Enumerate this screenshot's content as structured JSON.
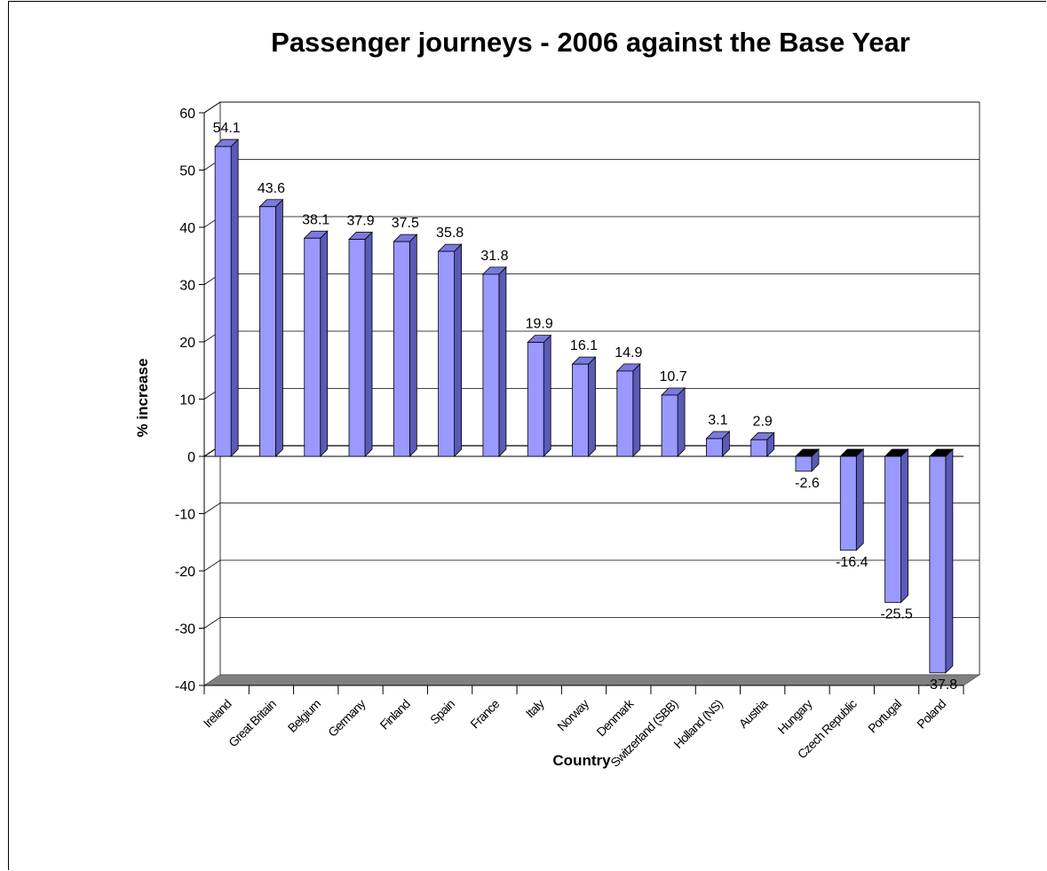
{
  "colors": {
    "bar_front": "#9999ff",
    "bar_side": "#5a5ab8",
    "bar_top": "#7a7ae0",
    "floor": "#808080",
    "grid": "#000000"
  },
  "chart_data": {
    "type": "bar",
    "title": "Passenger journeys - 2006 against the Base Year",
    "xlabel": "Country",
    "ylabel": "% increase",
    "ylim": [
      -40,
      60
    ],
    "yticks": [
      60,
      50,
      40,
      30,
      20,
      10,
      0,
      -10,
      -20,
      -30,
      -40
    ],
    "grid": true,
    "categories": [
      "Ireland",
      "Great Britain",
      "Belgium",
      "Germany",
      "Finland",
      "Spain",
      "France",
      "Italy",
      "Norway",
      "Denmark",
      "Switzerland (SBB)",
      "Holland (NS)",
      "Austria",
      "Hungary",
      "Czech Republic",
      "Portugal",
      "Poland"
    ],
    "values": [
      54.1,
      43.6,
      38.1,
      37.9,
      37.5,
      35.8,
      31.8,
      19.9,
      16.1,
      14.9,
      10.7,
      3.1,
      2.9,
      -2.6,
      -16.4,
      -25.5,
      -37.8
    ],
    "value_labels": [
      "54.1",
      "43.6",
      "38.1",
      "37.9",
      "37.5",
      "35.8",
      "31.8",
      "19.9",
      "16.1",
      "14.9",
      "10.7",
      "3.1",
      "2.9",
      "-2.6",
      "-16.4",
      "-25.5",
      "-37.8"
    ]
  }
}
